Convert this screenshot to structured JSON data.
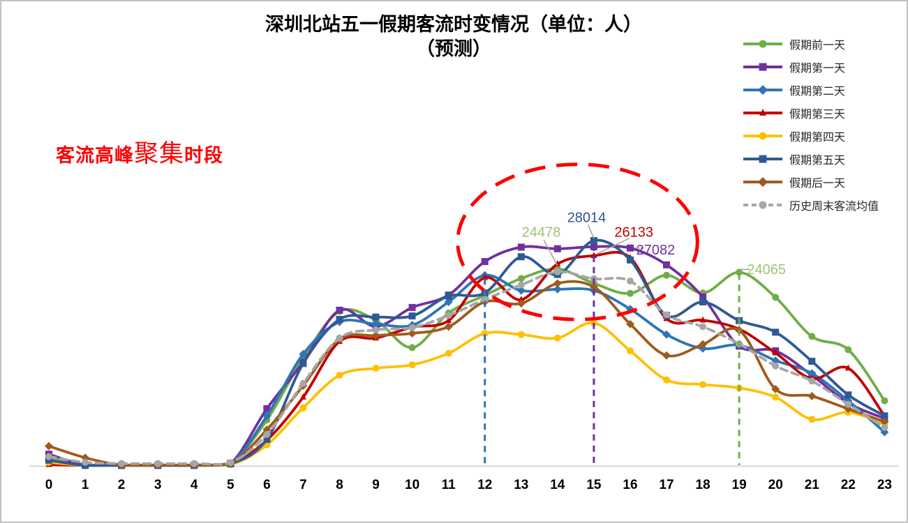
{
  "chart_data": {
    "type": "line",
    "title_line1": "深圳北站五一假期客流时变情况（单位：人）",
    "title_line2": "（预测）",
    "unit": "人",
    "peak_annotation": {
      "prefix": "客流高峰",
      "emphasis": "聚集",
      "suffix": "时段",
      "color": "#FF0000"
    },
    "x": [
      0,
      1,
      2,
      3,
      4,
      5,
      6,
      7,
      8,
      9,
      10,
      11,
      12,
      13,
      14,
      15,
      16,
      17,
      18,
      19,
      20,
      21,
      22,
      23
    ],
    "xlabel": "",
    "ylabel": "",
    "ylim": [
      0,
      30000
    ],
    "grid": false,
    "legend_position": "right",
    "axis_color": "#D9D9D9",
    "series": [
      {
        "key": "day-before",
        "name": "假期前一天",
        "color": "#70AD47",
        "marker": "circle",
        "dash": null,
        "values": [
          900,
          150,
          100,
          100,
          100,
          350,
          5700,
          13400,
          19200,
          18100,
          14700,
          19000,
          21200,
          23300,
          24478,
          22700,
          21450,
          23700,
          21500,
          24065,
          20950,
          16100,
          14450,
          8100
        ]
      },
      {
        "key": "day-1",
        "name": "假期第一天",
        "color": "#7030A0",
        "marker": "square",
        "dash": null,
        "values": [
          1450,
          100,
          50,
          50,
          50,
          300,
          7100,
          12900,
          19360,
          17340,
          19700,
          21240,
          25400,
          27200,
          27000,
          27250,
          27082,
          25000,
          21000,
          14880,
          14300,
          11270,
          7800,
          5900
        ]
      },
      {
        "key": "day-2",
        "name": "假期第二天",
        "color": "#2E75B6",
        "marker": "diamond",
        "dash": null,
        "values": [
          700,
          50,
          50,
          50,
          50,
          250,
          6200,
          13900,
          17900,
          17630,
          17490,
          20380,
          23700,
          21800,
          21960,
          21800,
          19500,
          16330,
          14600,
          15000,
          13100,
          11500,
          8090,
          4190
        ]
      },
      {
        "key": "day-3",
        "name": "假期第三天",
        "color": "#C00000",
        "marker": "triangle",
        "dash": null,
        "values": [
          150,
          50,
          50,
          50,
          50,
          200,
          3200,
          8530,
          15460,
          15890,
          17250,
          18060,
          23400,
          20660,
          25100,
          26133,
          25870,
          18300,
          18120,
          17000,
          14040,
          10840,
          12140,
          6200
        ]
      },
      {
        "key": "day-4",
        "name": "假期第四天",
        "color": "#FFC000",
        "marker": "circle",
        "dash": null,
        "values": [
          430,
          50,
          50,
          50,
          50,
          150,
          2600,
          7220,
          11270,
          12140,
          12570,
          14000,
          16470,
          16330,
          15890,
          17770,
          14300,
          10690,
          10110,
          9680,
          8530,
          5780,
          6650,
          5200
        ]
      },
      {
        "key": "day-5",
        "name": "假期第五天",
        "color": "#2F5994",
        "marker": "square",
        "dash": null,
        "values": [
          700,
          50,
          50,
          50,
          50,
          250,
          3300,
          12720,
          18210,
          18500,
          18640,
          21100,
          21500,
          26000,
          23800,
          28014,
          25600,
          18700,
          20380,
          18060,
          16620,
          13000,
          8820,
          6220
        ]
      },
      {
        "key": "day-after",
        "name": "假期后一天",
        "color": "#A05A1E",
        "marker": "diamond",
        "dash": null,
        "values": [
          2450,
          1010,
          100,
          100,
          100,
          300,
          4500,
          9970,
          15750,
          16200,
          16470,
          17300,
          20400,
          20200,
          22690,
          22250,
          17630,
          13730,
          15110,
          16850,
          9540,
          8670,
          7080,
          5490
        ]
      },
      {
        "key": "weekend-avg",
        "name": "历史周末客流均值",
        "color": "#A6A6A6",
        "marker": "circle",
        "dash": "10 7",
        "values": [
          1150,
          430,
          290,
          290,
          290,
          400,
          3900,
          10260,
          15890,
          16900,
          17200,
          18700,
          20700,
          22500,
          24130,
          23260,
          22980,
          18790,
          17300,
          15170,
          12430,
          10550,
          7660,
          4770
        ]
      }
    ],
    "data_labels": [
      {
        "text": "24478",
        "color": "#A2C275",
        "label_hour": 13.55,
        "label_value": 29100,
        "leader": [
          13.62,
          28100,
          14.0,
          24900
        ]
      },
      {
        "text": "28014",
        "color": "#31538F",
        "label_hour": 14.8,
        "label_value": 30900,
        "leader": [
          14.84,
          30000,
          15.0,
          28300
        ]
      },
      {
        "text": "26133",
        "color": "#C00000",
        "label_hour": 16.1,
        "label_value": 29100,
        "leader": [
          15.98,
          28300,
          15.08,
          26350
        ]
      },
      {
        "text": "27082",
        "color": "#7030A0",
        "label_hour": 16.7,
        "label_value": 26900,
        "leader": [
          16.12,
          27082,
          16.38,
          27082
        ]
      },
      {
        "text": "24065",
        "color": "#A2C275",
        "label_hour": 19.75,
        "label_value": 24450,
        "leader": [
          19.04,
          24400,
          19.3,
          24450
        ]
      }
    ],
    "peak_lines": [
      {
        "hour": 12,
        "color": "#2E75B6",
        "from_value": 23300
      },
      {
        "hour": 15,
        "color": "#7030A0",
        "from_value": 27500
      },
      {
        "hour": 19,
        "color": "#70AD47",
        "from_value": 23900
      }
    ],
    "highlight_ellipse": {
      "color": "#FF0000",
      "center_hour": 14.55,
      "center_value": 27850,
      "rx_hours": 3.3,
      "ry_value": 9650
    }
  }
}
